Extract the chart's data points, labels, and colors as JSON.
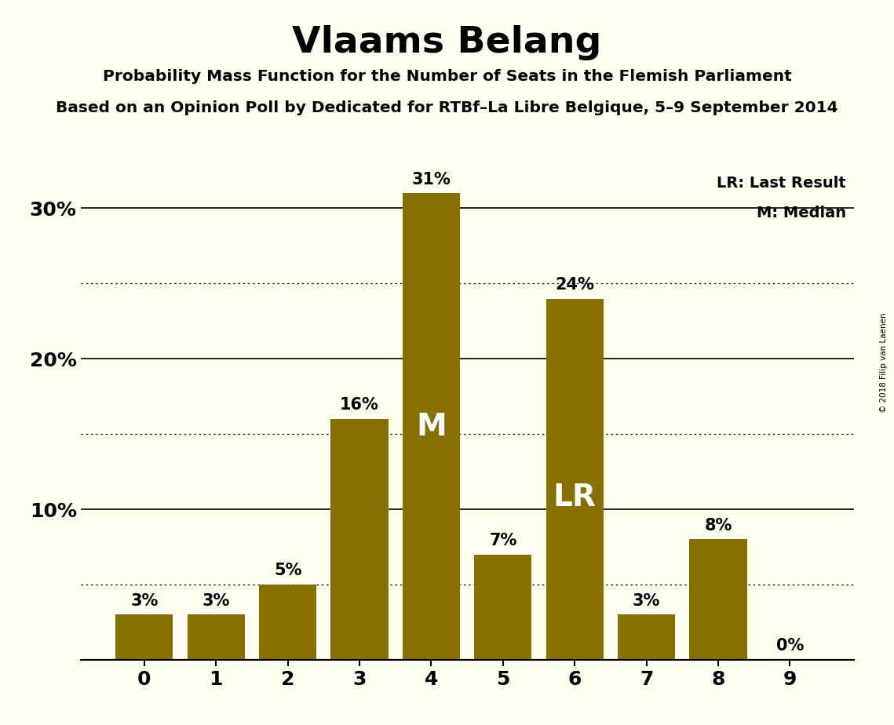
{
  "title": "Vlaams Belang",
  "subtitle1": "Probability Mass Function for the Number of Seats in the Flemish Parliament",
  "subtitle2": "Based on an Opinion Poll by Dedicated for RTBf–La Libre Belgique, 5–9 September 2014",
  "copyright": "© 2018 Filip van Laenen",
  "categories": [
    0,
    1,
    2,
    3,
    4,
    5,
    6,
    7,
    8,
    9
  ],
  "values": [
    3,
    3,
    5,
    16,
    31,
    7,
    24,
    3,
    8,
    0
  ],
  "bar_color": "#857000",
  "background_color": "#FFFFF0",
  "text_color": "#000000",
  "label_color_outside": "#000000",
  "label_color_inside": "#FFFFFF",
  "median_bar": 4,
  "last_result_bar": 6,
  "legend_lr": "LR: Last Result",
  "legend_m": "M: Median",
  "ylim": [
    0,
    33
  ],
  "solid_lines": [
    10,
    20,
    30
  ],
  "dotted_lines": [
    5,
    15,
    25
  ],
  "ytick_positions": [
    10,
    20,
    30
  ],
  "ytick_labels": [
    "10%",
    "20%",
    "30%"
  ]
}
